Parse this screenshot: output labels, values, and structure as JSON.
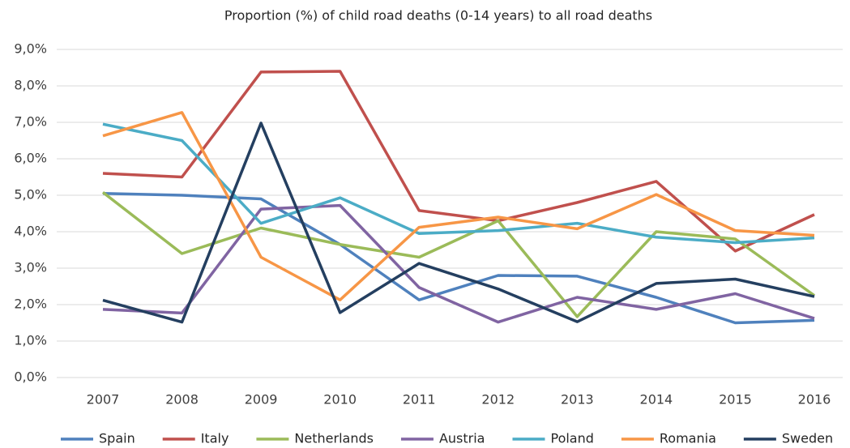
{
  "chart_data": {
    "type": "line",
    "title": "Proportion (%) of child road deaths (0-14 years)  to all road deaths",
    "categories": [
      "2007",
      "2008",
      "2009",
      "2010",
      "2011",
      "2012",
      "2013",
      "2014",
      "2015",
      "2016"
    ],
    "ylim": [
      0,
      9
    ],
    "yticks": [
      {
        "value": 0,
        "label": "0,0%"
      },
      {
        "value": 1,
        "label": "1,0%"
      },
      {
        "value": 2,
        "label": "2,0%"
      },
      {
        "value": 3,
        "label": "3,0%"
      },
      {
        "value": 4,
        "label": "4,0%"
      },
      {
        "value": 5,
        "label": "5,0%"
      },
      {
        "value": 6,
        "label": "6,0%"
      },
      {
        "value": 7,
        "label": "7,0%"
      },
      {
        "value": 8,
        "label": "8,0%"
      },
      {
        "value": 9,
        "label": "9,0%"
      }
    ],
    "grid": true,
    "legend": "bottom",
    "series": [
      {
        "name": "Spain",
        "color": "#4f81bd",
        "values": [
          5.05,
          5.0,
          4.9,
          3.65,
          2.13,
          2.8,
          2.78,
          2.2,
          1.5,
          1.57
        ]
      },
      {
        "name": "Italy",
        "color": "#c0504d",
        "values": [
          5.6,
          5.5,
          8.38,
          8.4,
          4.58,
          4.3,
          4.8,
          5.38,
          3.47,
          4.47
        ]
      },
      {
        "name": "Netherlands",
        "color": "#9bbb59",
        "values": [
          5.08,
          3.4,
          4.1,
          3.65,
          3.3,
          4.3,
          1.67,
          4.0,
          3.8,
          2.25
        ]
      },
      {
        "name": "Austria",
        "color": "#8064a2",
        "values": [
          1.87,
          1.77,
          4.62,
          4.72,
          2.47,
          1.52,
          2.2,
          1.87,
          2.3,
          1.62
        ]
      },
      {
        "name": "Poland",
        "color": "#4bacc6",
        "values": [
          6.95,
          6.5,
          4.23,
          4.93,
          3.95,
          4.03,
          4.23,
          3.85,
          3.7,
          3.83
        ]
      },
      {
        "name": "Romania",
        "color": "#f79646",
        "values": [
          6.63,
          7.27,
          3.3,
          2.13,
          4.12,
          4.4,
          4.08,
          5.02,
          4.03,
          3.9
        ]
      },
      {
        "name": "Sweden",
        "color": "#243f60",
        "values": [
          2.12,
          1.52,
          6.98,
          1.78,
          3.13,
          2.43,
          1.53,
          2.58,
          2.7,
          2.22
        ]
      }
    ]
  }
}
